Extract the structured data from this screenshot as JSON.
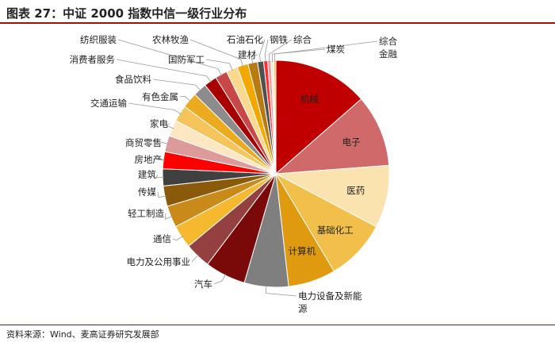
{
  "title": {
    "fig_label": "图表 27：",
    "text": "中证 2000 指数中信一级行业分布"
  },
  "source": "资料来源：Wind、麦高证券研究发展部",
  "chart_data": {
    "type": "pie",
    "title": "中证 2000 指数中信一级行业分布",
    "slices": [
      {
        "label": "机械",
        "value": 14.0,
        "color": "#c00000"
      },
      {
        "label": "电子",
        "value": 10.6,
        "color": "#d06a6a"
      },
      {
        "label": "医药",
        "value": 9.2,
        "color": "#fbe3b0"
      },
      {
        "label": "基础化工",
        "value": 9.0,
        "color": "#f2c04a"
      },
      {
        "label": "计算机",
        "value": 7.0,
        "color": "#e09a10"
      },
      {
        "label": "电力设备及新能源",
        "value": 6.5,
        "color": "#7f7f7f"
      },
      {
        "label": "汽车",
        "value": 6.0,
        "color": "#7a0a0a"
      },
      {
        "label": "电力及公用事业",
        "value": 3.8,
        "color": "#944040"
      },
      {
        "label": "通信",
        "value": 3.4,
        "color": "#f5b82e"
      },
      {
        "label": "轻工制造",
        "value": 3.2,
        "color": "#c98a1a"
      },
      {
        "label": "传媒",
        "value": 3.0,
        "color": "#8a5a0a"
      },
      {
        "label": "建筑",
        "value": 2.5,
        "color": "#404040"
      },
      {
        "label": "房地产",
        "value": 2.5,
        "color": "#ff0000"
      },
      {
        "label": "商贸零售",
        "value": 2.4,
        "color": "#dc9a9a"
      },
      {
        "label": "家电",
        "value": 2.4,
        "color": "#fde7c3"
      },
      {
        "label": "交通运输",
        "value": 2.4,
        "color": "#f5c45a"
      },
      {
        "label": "有色金属",
        "value": 2.3,
        "color": "#ecab1f"
      },
      {
        "label": "食品饮料",
        "value": 2.0,
        "color": "#8c8c8c"
      },
      {
        "label": "消费者服务",
        "value": 1.9,
        "color": "#a80000"
      },
      {
        "label": "纺织服装",
        "value": 1.8,
        "color": "#c84848"
      },
      {
        "label": "国防军工",
        "value": 1.7,
        "color": "#fad88e"
      },
      {
        "label": "农林牧渔",
        "value": 1.6,
        "color": "#f2a800"
      },
      {
        "label": "建材",
        "value": 1.4,
        "color": "#b87a12"
      },
      {
        "label": "石油石化",
        "value": 0.9,
        "color": "#505050"
      },
      {
        "label": "钢铁",
        "value": 0.6,
        "color": "#ff3030"
      },
      {
        "label": "综合",
        "value": 0.5,
        "color": "#e8a0a0"
      },
      {
        "label": "煤炭",
        "value": 0.4,
        "color": "#fdebd0"
      },
      {
        "label": "综合金融",
        "value": 0.3,
        "color": "#f3c04d"
      }
    ]
  }
}
